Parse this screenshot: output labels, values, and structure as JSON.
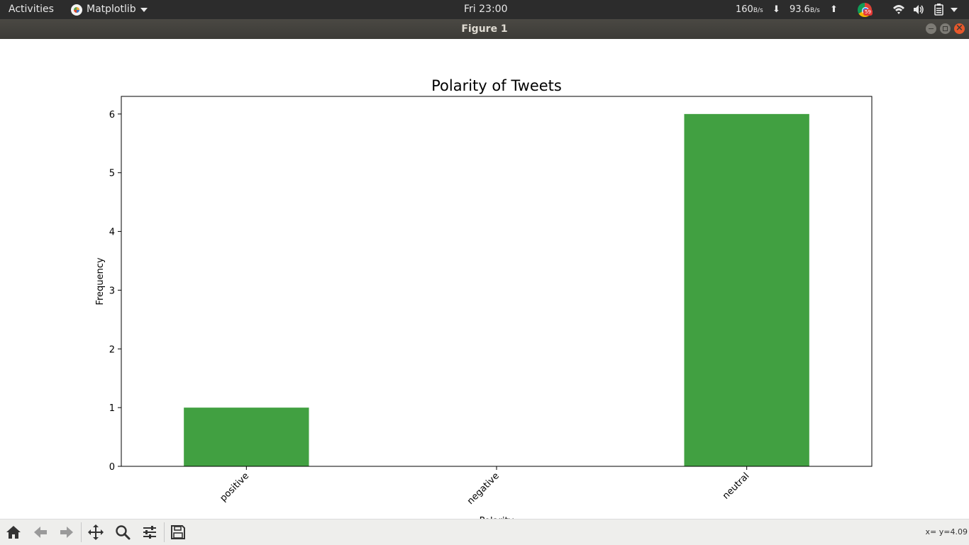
{
  "topbar": {
    "activities": "Activities",
    "app_name": "Matplotlib",
    "clock": "Fri 23:00",
    "net_down": "160",
    "net_down_unit": "B/s",
    "net_up": "93.6",
    "net_up_unit": "B/s",
    "chrome_badge": "59"
  },
  "window": {
    "title": "Figure 1"
  },
  "chart_data": {
    "type": "bar",
    "title": "Polarity of Tweets",
    "xlabel": "Polarity",
    "ylabel": "Frequency",
    "categories": [
      "positive",
      "negative",
      "neutral"
    ],
    "values": [
      1,
      0,
      6
    ],
    "ylim": [
      0,
      6.3
    ],
    "yticks": [
      0,
      1,
      2,
      3,
      4,
      5,
      6
    ],
    "bar_color": "#41a041",
    "xtick_rotation": 45,
    "grid": false
  },
  "toolbar": {
    "buttons": [
      {
        "name": "home-icon"
      },
      {
        "name": "back-icon"
      },
      {
        "name": "forward-icon"
      },
      {
        "name": "pan-icon"
      },
      {
        "name": "zoom-icon"
      },
      {
        "name": "configure-subplots-icon"
      },
      {
        "name": "save-icon"
      }
    ],
    "coords": "x= y=4.09"
  }
}
